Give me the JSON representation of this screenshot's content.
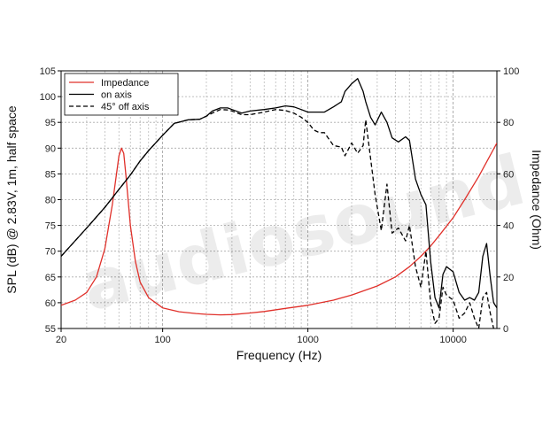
{
  "chart_data": {
    "type": "line",
    "xlabel": "Frequency (Hz)",
    "ylabel_left": "SPL (dB) @ 2.83V, 1m, half space",
    "ylabel_right": "Impedance (Ohm)",
    "x_scale": "log",
    "xlim": [
      20,
      20000
    ],
    "ylim_left": [
      55,
      105
    ],
    "ylim_right": [
      0,
      100
    ],
    "x_ticks": [
      20,
      100,
      1000,
      10000
    ],
    "x_tick_labels": [
      "20",
      "100",
      "1000",
      "10000"
    ],
    "y_ticks_left": [
      55,
      60,
      65,
      70,
      75,
      80,
      85,
      90,
      95,
      100,
      105
    ],
    "y_tick_labels_left": [
      "55",
      "60",
      "65",
      "70",
      "75",
      "80",
      "85",
      "90",
      "95",
      "100",
      "105"
    ],
    "y_ticks_right": [
      0,
      20,
      40,
      60,
      80,
      100
    ],
    "y_tick_labels_right": [
      "0",
      "20",
      "40",
      "60",
      "80",
      "100"
    ],
    "grid": true,
    "legend_position": "top-left",
    "watermark": "audiosound",
    "series": [
      {
        "name": "Impedance",
        "color": "#e0302a",
        "dash": "solid",
        "axis": "right",
        "x": [
          20,
          25,
          30,
          35,
          40,
          45,
          50,
          52,
          54,
          56,
          60,
          65,
          70,
          80,
          100,
          130,
          170,
          200,
          250,
          300,
          400,
          500,
          700,
          1000,
          1500,
          2000,
          3000,
          4000,
          5000,
          6000,
          7000,
          8000,
          10000,
          12000,
          15000,
          20000
        ],
        "y": [
          9,
          11,
          14,
          20,
          31,
          48,
          67,
          70,
          68,
          59,
          40,
          26,
          18,
          12,
          8,
          6.5,
          5.8,
          5.5,
          5.3,
          5.4,
          6,
          6.6,
          7.8,
          9,
          11,
          13,
          16.5,
          20,
          24,
          28,
          32,
          36,
          43,
          50,
          59,
          72
        ]
      },
      {
        "name": "on axis",
        "color": "#000000",
        "dash": "solid",
        "axis": "left",
        "x": [
          20,
          30,
          40,
          50,
          60,
          70,
          80,
          100,
          120,
          150,
          180,
          200,
          220,
          250,
          280,
          300,
          350,
          400,
          500,
          600,
          700,
          800,
          900,
          1000,
          1100,
          1300,
          1500,
          1700,
          1800,
          2000,
          2200,
          2400,
          2500,
          2700,
          2900,
          3200,
          3500,
          3800,
          4200,
          4700,
          5000,
          5500,
          6000,
          6500,
          7000,
          7500,
          8000,
          8500,
          9000,
          10000,
          11000,
          12000,
          13000,
          14000,
          15000,
          16000,
          17000,
          18000,
          19000,
          20000
        ],
        "y": [
          69,
          74.5,
          78.5,
          82,
          84.8,
          87.5,
          89.5,
          92.5,
          94.8,
          95.5,
          95.6,
          96.2,
          97.2,
          97.8,
          97.8,
          97.5,
          96.8,
          97.2,
          97.5,
          97.8,
          98.2,
          98,
          97.5,
          97,
          97,
          97,
          98,
          99,
          101,
          102.5,
          103.5,
          101,
          99,
          96,
          94.5,
          97,
          95,
          92,
          91.2,
          92.2,
          91.5,
          84,
          81,
          79,
          68,
          61,
          59,
          65.5,
          67,
          66,
          62,
          60.5,
          61,
          60.5,
          62,
          69,
          71.5,
          65,
          60,
          59
        ]
      },
      {
        "name": "45° off axis",
        "color": "#000000",
        "dash": "dashed",
        "axis": "left",
        "x": [
          20,
          30,
          40,
          50,
          60,
          70,
          80,
          100,
          120,
          150,
          180,
          200,
          220,
          250,
          280,
          300,
          350,
          400,
          500,
          600,
          700,
          800,
          900,
          1000,
          1100,
          1200,
          1300,
          1500,
          1700,
          1800,
          2000,
          2200,
          2400,
          2500,
          2700,
          2900,
          3200,
          3500,
          3800,
          4200,
          4700,
          5000,
          5500,
          6000,
          6500,
          7000,
          7500,
          8000,
          8500,
          9000,
          10000,
          11000,
          12000,
          13000,
          14000,
          15000,
          16000,
          17000,
          18000,
          19000,
          20000
        ],
        "y": [
          69,
          74.5,
          78.5,
          82,
          84.8,
          87.5,
          89.5,
          92.5,
          94.8,
          95.5,
          95.6,
          96.2,
          96.8,
          97.5,
          97.4,
          97.2,
          96.5,
          96.5,
          97,
          97.5,
          97.3,
          96.8,
          96,
          95,
          93.5,
          93,
          93,
          90.5,
          90.2,
          88.5,
          91,
          89,
          90.5,
          95.5,
          88,
          81,
          74,
          83,
          73.5,
          74.5,
          72,
          75,
          67,
          63,
          70,
          60,
          56,
          57,
          63,
          61.5,
          60.5,
          57,
          58,
          60,
          57,
          55,
          61,
          62,
          58,
          55,
          55
        ]
      }
    ]
  }
}
